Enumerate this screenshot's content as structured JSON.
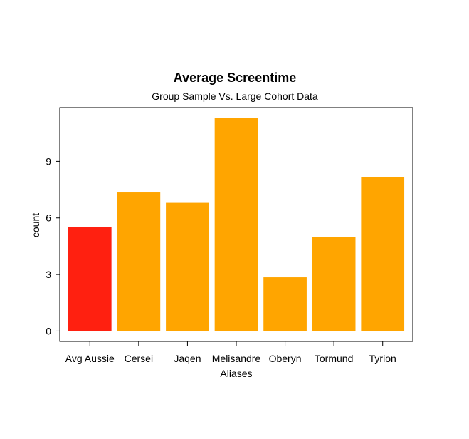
{
  "chart_data": {
    "type": "bar",
    "title": "Average Screentime",
    "subtitle": "Group Sample Vs. Large Cohort Data",
    "xlabel": "Aliases",
    "ylabel": "count",
    "categories": [
      "Avg Aussie",
      "Cersei",
      "Jaqen",
      "Melisandre",
      "Oberyn",
      "Tormund",
      "Tyrion"
    ],
    "values": [
      5.5,
      7.35,
      6.8,
      11.3,
      2.85,
      5.0,
      8.15
    ],
    "bar_colors": [
      "#ff2010",
      "#ffa500",
      "#ffa500",
      "#ffa500",
      "#ffa500",
      "#ffa500",
      "#ffa500"
    ],
    "yticks": [
      0,
      3,
      6,
      9
    ],
    "ylim": [
      -0.55,
      11.85
    ],
    "grid": false,
    "legend": "none"
  }
}
